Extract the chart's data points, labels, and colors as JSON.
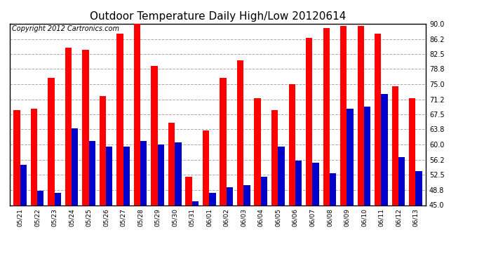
{
  "title": "Outdoor Temperature Daily High/Low 20120614",
  "copyright": "Copyright 2012 Cartronics.com",
  "categories": [
    "05/21",
    "05/22",
    "05/23",
    "05/24",
    "05/25",
    "05/26",
    "05/27",
    "05/28",
    "05/29",
    "05/30",
    "05/31",
    "06/01",
    "06/02",
    "06/03",
    "06/04",
    "06/05",
    "06/06",
    "06/07",
    "06/08",
    "06/09",
    "06/10",
    "06/11",
    "06/12",
    "06/13"
  ],
  "highs": [
    68.5,
    69.0,
    76.5,
    84.0,
    83.5,
    72.0,
    87.5,
    90.5,
    79.5,
    65.5,
    52.0,
    63.5,
    76.5,
    81.0,
    71.5,
    68.5,
    75.0,
    86.5,
    89.0,
    89.5,
    89.5,
    87.5,
    74.5,
    71.5
  ],
  "lows": [
    55.0,
    48.5,
    48.0,
    64.0,
    61.0,
    59.5,
    59.5,
    61.0,
    60.0,
    60.5,
    46.0,
    48.0,
    49.5,
    50.0,
    52.0,
    59.5,
    56.0,
    55.5,
    53.0,
    69.0,
    69.5,
    72.5,
    57.0,
    53.5
  ],
  "high_color": "#ff0000",
  "low_color": "#0000cc",
  "background_color": "#ffffff",
  "grid_color": "#aaaaaa",
  "ylim": [
    45.0,
    90.0
  ],
  "yticks": [
    45.0,
    48.8,
    52.5,
    56.2,
    60.0,
    63.8,
    67.5,
    71.2,
    75.0,
    78.8,
    82.5,
    86.2,
    90.0
  ],
  "title_fontsize": 11,
  "copyright_fontsize": 7,
  "bar_width": 0.38
}
